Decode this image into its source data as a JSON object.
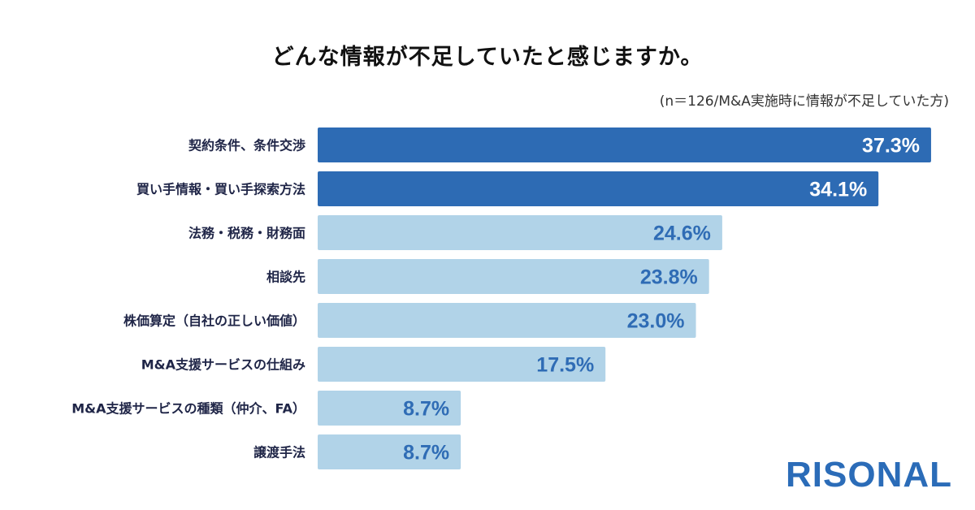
{
  "chart_data": {
    "type": "bar",
    "orientation": "horizontal",
    "title": "どんな情報が不足していたと感じますか。",
    "subtitle": "(n＝126/M&A実施時に情報が不足していた方)",
    "categories": [
      "契約条件、条件交渉",
      "買い手情報・買い手探索方法",
      "法務・税務・財務面",
      "相談先",
      "株価算定（自社の正しい価値）",
      "M&A支援サービスの仕組み",
      "M&A支援サービスの種類（仲介、FA）",
      "譲渡手法"
    ],
    "values": [
      37.3,
      34.1,
      24.6,
      23.8,
      23.0,
      17.5,
      8.7,
      8.7
    ],
    "value_labels": [
      "37.3%",
      "34.1%",
      "24.6%",
      "23.8%",
      "23.0%",
      "17.5%",
      "8.7%",
      "8.7%"
    ],
    "highlighted": [
      true,
      true,
      false,
      false,
      false,
      false,
      false,
      false
    ],
    "grid": false,
    "colors": {
      "highlight": "#2d6bb4",
      "normal": "#b1d3e8",
      "label": "#1f2547",
      "value_on_light": "#2f6cb5",
      "value_on_dark": "#ffffff"
    }
  },
  "brand": {
    "logo_text": "RISONAL"
  }
}
